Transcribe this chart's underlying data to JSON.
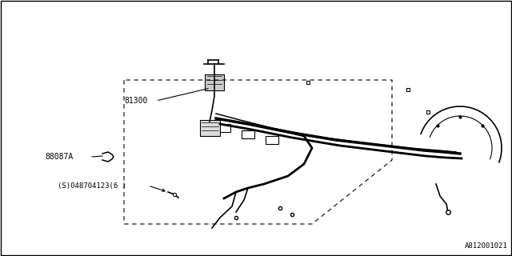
{
  "title": "",
  "bg_color": "#ffffff",
  "line_color": "#000000",
  "label_81300": "81300",
  "label_88087A": "88087A",
  "label_part": "(S)048704123(6 )",
  "label_diagram_id": "A812001021",
  "border_color": "#000000",
  "fig_width": 6.4,
  "fig_height": 3.2,
  "dpi": 100
}
